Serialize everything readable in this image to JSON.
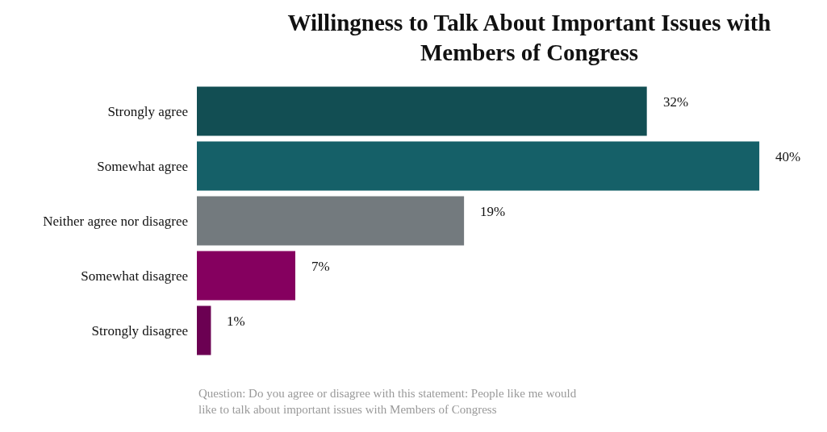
{
  "chart_data": {
    "type": "bar",
    "orientation": "horizontal",
    "title": "Willingness to Talk About Important Issues with Members of Congress",
    "categories": [
      "Strongly agree",
      "Somewhat agree",
      "Neither agree nor disagree",
      "Somewhat disagree",
      "Strongly disagree"
    ],
    "values": [
      32,
      40,
      19,
      7,
      1
    ],
    "colors": [
      "#124e53",
      "#156068",
      "#737a7e",
      "#85005f",
      "#6b0052"
    ],
    "value_labels": [
      "32%",
      "40%",
      "19%",
      "7%",
      "1%"
    ],
    "annotations": [
      "Question: Do you agree or disagree with this statement: People like me would like to talk about important issues with Members of Congress"
    ]
  }
}
